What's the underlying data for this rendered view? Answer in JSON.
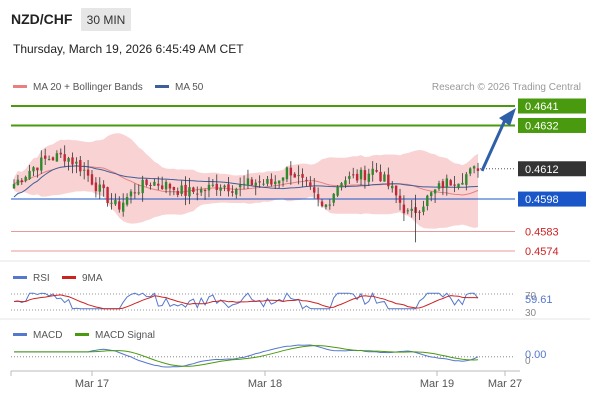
{
  "header": {
    "symbol": "NZD/CHF",
    "timeframe": "30 MIN",
    "datetime": "Thursday, March 19, 2026 6:45:49 AM CET"
  },
  "legend": {
    "ma20_label": "MA 20 + Bollinger Bands",
    "ma50_label": "MA 50",
    "copyright": "Research © 2026 Trading Central"
  },
  "colors": {
    "resistance": "#4a9a10",
    "support": "#e89a9a",
    "pivot": "#1a56c8",
    "current": "#333333",
    "bull": "#2f8a2f",
    "bear": "#c0283a",
    "band": "#f9d3d3",
    "ma20": "#e88080",
    "ma50": "#3d5f9a",
    "arrow": "#2e5fa8",
    "rsi": "#5577cc",
    "rsi_ma": "#cc2222",
    "macd": "#5577cc",
    "macd_signal": "#4a9a10"
  },
  "chart_data": [
    {
      "type": "candlestick",
      "title": "NZD/CHF",
      "x_ticks": [
        "Mar 17",
        "Mar 18",
        "Mar 19",
        "Mar 27"
      ],
      "levels": [
        {
          "value": 0.4641,
          "kind": "resistance",
          "label": "0.4641"
        },
        {
          "value": 0.4632,
          "kind": "resistance",
          "label": "0.4632"
        },
        {
          "value": 0.4612,
          "kind": "current",
          "label": "0.4612"
        },
        {
          "value": 0.4598,
          "kind": "pivot",
          "label": "0.4598"
        },
        {
          "value": 0.4583,
          "kind": "support",
          "label": "0.4583"
        },
        {
          "value": 0.4574,
          "kind": "support",
          "label": "0.4574"
        }
      ],
      "series": [
        {
          "name": "MA 20 + Bollinger Bands"
        },
        {
          "name": "MA 50"
        }
      ],
      "forecast_arrow": {
        "from": 0.4611,
        "to": 0.4641,
        "direction": "up"
      },
      "close_anchors": [
        0.4605,
        0.4612,
        0.4617,
        0.4618,
        0.4612,
        0.4602,
        0.4594,
        0.4602,
        0.4606,
        0.4604,
        0.4601,
        0.4602,
        0.4605,
        0.4603,
        0.4606,
        0.4605,
        0.4612,
        0.4604,
        0.4593,
        0.4607,
        0.4608,
        0.4612,
        0.4602,
        0.459,
        0.4598,
        0.4605,
        0.4608,
        0.4612
      ]
    },
    {
      "type": "line",
      "title": "RSI",
      "series": [
        {
          "name": "RSI"
        },
        {
          "name": "9MA"
        }
      ],
      "levels": [
        70,
        30
      ],
      "value_label": "59.61",
      "level_labels": [
        "70",
        "30"
      ]
    },
    {
      "type": "line",
      "title": "MACD",
      "series": [
        {
          "name": "MACD"
        },
        {
          "name": "MACD Signal"
        }
      ],
      "value_label": "0.00",
      "level_labels": [
        "0"
      ]
    }
  ]
}
